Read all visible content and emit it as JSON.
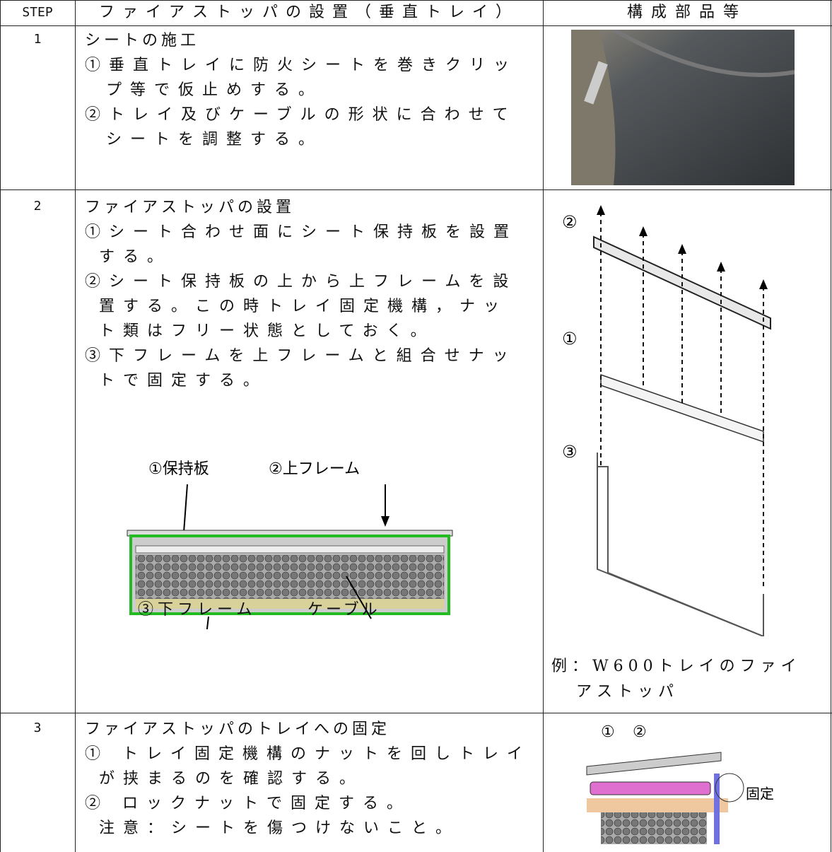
{
  "table": {
    "header": {
      "step": "STEP",
      "procedure": "ファイアストッパの設置（垂直トレイ）",
      "parts": "構成部品等"
    },
    "rows": [
      {
        "step": "1",
        "title": "シートの施工",
        "items": [
          [
            "①垂直トレイに防火シートを巻きクリッ",
            "プ等で仮止めする。"
          ],
          [
            "②トレイ及びケーブルの形状に合わせて",
            "シートを調整する。"
          ]
        ]
      },
      {
        "step": "2",
        "title": "ファイアストッパの設置",
        "items": [
          [
            "①シート合わせ面にシート保持板を設置",
            "する。"
          ],
          [
            "②シート保持板の上から上フレームを設",
            "置する。この時トレイ固定機構，ナッ",
            "ト類はフリー状態としておく。"
          ],
          [
            "③下フレームを上フレームと組合せナッ",
            "トで固定する。"
          ]
        ],
        "figure_labels": {
          "holder": "①保持板",
          "upper": "②上フレーム",
          "lower": "③下フレーム",
          "cable": "ケーブル"
        },
        "parts_labels": [
          "②",
          "①",
          "③"
        ],
        "caption": [
          "例：W600トレイのファイ",
          "アストッパ"
        ]
      },
      {
        "step": "3",
        "title": "ファイアストッパのトレイへの固定",
        "items": [
          [
            "① トレイ固定機構のナットを回しトレイ",
            "が挟まるのを確認する。"
          ],
          [
            "② ロックナットで固定する。"
          ]
        ],
        "note": "注意：シートを傷つけないこと。",
        "parts_labels": [
          "①",
          "②",
          "固定"
        ]
      }
    ]
  }
}
